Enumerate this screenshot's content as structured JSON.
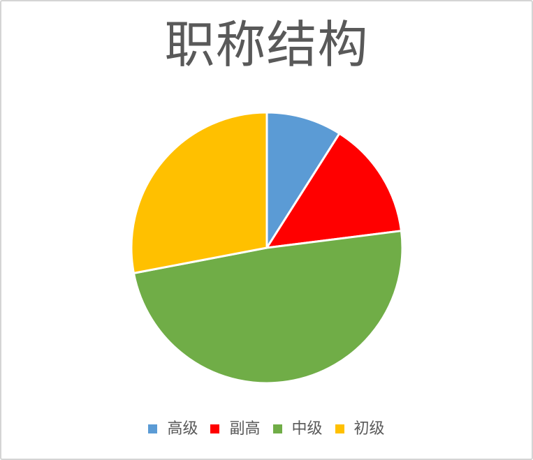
{
  "frame": {
    "background": "#ffffff",
    "border_color": "#d4d4d4"
  },
  "chart_data": {
    "type": "pie",
    "title": "职称结构",
    "categories": [
      "高级",
      "副高",
      "中级",
      "初级"
    ],
    "values": [
      9,
      14,
      49,
      28
    ],
    "unit": "percent",
    "colors": [
      "#5B9BD5",
      "#FF0000",
      "#70AD47",
      "#FFC000"
    ],
    "start_angle_deg": 0,
    "direction": "clockwise",
    "legend_position": "bottom",
    "title_color": "#595959",
    "legend_text_color": "#595959",
    "slice_border_color": "#FFFFFF"
  }
}
